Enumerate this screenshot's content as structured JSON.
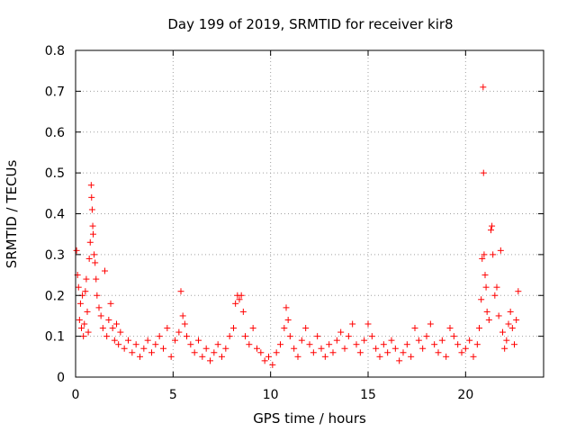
{
  "chart_data": {
    "type": "scatter",
    "title": "Day 199 of 2019, SRMTID for receiver kir8",
    "xlabel": "GPS time / hours",
    "ylabel": "SRMTID / TECUs",
    "xlim": [
      0,
      24
    ],
    "ylim": [
      0,
      0.8
    ],
    "xticks": [
      0,
      5,
      10,
      15,
      20
    ],
    "xtick_labels": [
      "0",
      "5",
      "10",
      "15",
      "20"
    ],
    "yticks": [
      0,
      0.1,
      0.2,
      0.3,
      0.4,
      0.5,
      0.6,
      0.7,
      0.8
    ],
    "ytick_labels": [
      "0",
      "0.1",
      "0.2",
      "0.3",
      "0.4",
      "0.5",
      "0.6",
      "0.7",
      "0.8"
    ],
    "grid": true,
    "marker_color": "#ff0000",
    "marker": "+",
    "series": [
      {
        "name": "SRMTID",
        "points": [
          [
            0.05,
            0.31
          ],
          [
            0.1,
            0.25
          ],
          [
            0.15,
            0.22
          ],
          [
            0.2,
            0.14
          ],
          [
            0.25,
            0.18
          ],
          [
            0.3,
            0.12
          ],
          [
            0.35,
            0.2
          ],
          [
            0.4,
            0.1
          ],
          [
            0.45,
            0.13
          ],
          [
            0.5,
            0.21
          ],
          [
            0.55,
            0.24
          ],
          [
            0.6,
            0.16
          ],
          [
            0.65,
            0.11
          ],
          [
            0.7,
            0.29
          ],
          [
            0.75,
            0.33
          ],
          [
            0.8,
            0.47
          ],
          [
            0.82,
            0.44
          ],
          [
            0.85,
            0.41
          ],
          [
            0.88,
            0.37
          ],
          [
            0.9,
            0.35
          ],
          [
            0.95,
            0.3
          ],
          [
            1.0,
            0.28
          ],
          [
            1.05,
            0.24
          ],
          [
            1.1,
            0.2
          ],
          [
            1.2,
            0.17
          ],
          [
            1.3,
            0.15
          ],
          [
            1.4,
            0.12
          ],
          [
            1.5,
            0.26
          ],
          [
            1.6,
            0.1
          ],
          [
            1.7,
            0.14
          ],
          [
            1.8,
            0.18
          ],
          [
            1.9,
            0.12
          ],
          [
            2.0,
            0.09
          ],
          [
            2.1,
            0.13
          ],
          [
            2.2,
            0.08
          ],
          [
            2.3,
            0.11
          ],
          [
            2.5,
            0.07
          ],
          [
            2.7,
            0.09
          ],
          [
            2.9,
            0.06
          ],
          [
            3.1,
            0.08
          ],
          [
            3.3,
            0.05
          ],
          [
            3.5,
            0.07
          ],
          [
            3.7,
            0.09
          ],
          [
            3.9,
            0.06
          ],
          [
            4.1,
            0.08
          ],
          [
            4.3,
            0.1
          ],
          [
            4.5,
            0.07
          ],
          [
            4.7,
            0.12
          ],
          [
            4.9,
            0.05
          ],
          [
            5.1,
            0.09
          ],
          [
            5.3,
            0.11
          ],
          [
            5.4,
            0.21
          ],
          [
            5.5,
            0.15
          ],
          [
            5.6,
            0.13
          ],
          [
            5.7,
            0.1
          ],
          [
            5.9,
            0.08
          ],
          [
            6.1,
            0.06
          ],
          [
            6.3,
            0.09
          ],
          [
            6.5,
            0.05
          ],
          [
            6.7,
            0.07
          ],
          [
            6.9,
            0.04
          ],
          [
            7.1,
            0.06
          ],
          [
            7.3,
            0.08
          ],
          [
            7.5,
            0.05
          ],
          [
            7.7,
            0.07
          ],
          [
            7.9,
            0.1
          ],
          [
            8.1,
            0.12
          ],
          [
            8.2,
            0.18
          ],
          [
            8.3,
            0.2
          ],
          [
            8.4,
            0.19
          ],
          [
            8.5,
            0.2
          ],
          [
            8.6,
            0.16
          ],
          [
            8.7,
            0.1
          ],
          [
            8.9,
            0.08
          ],
          [
            9.1,
            0.12
          ],
          [
            9.3,
            0.07
          ],
          [
            9.5,
            0.06
          ],
          [
            9.7,
            0.04
          ],
          [
            9.9,
            0.05
          ],
          [
            10.1,
            0.03
          ],
          [
            10.3,
            0.06
          ],
          [
            10.5,
            0.08
          ],
          [
            10.7,
            0.12
          ],
          [
            10.8,
            0.17
          ],
          [
            10.9,
            0.14
          ],
          [
            11.0,
            0.1
          ],
          [
            11.2,
            0.07
          ],
          [
            11.4,
            0.05
          ],
          [
            11.6,
            0.09
          ],
          [
            11.8,
            0.12
          ],
          [
            12.0,
            0.08
          ],
          [
            12.2,
            0.06
          ],
          [
            12.4,
            0.1
          ],
          [
            12.6,
            0.07
          ],
          [
            12.8,
            0.05
          ],
          [
            13.0,
            0.08
          ],
          [
            13.2,
            0.06
          ],
          [
            13.4,
            0.09
          ],
          [
            13.6,
            0.11
          ],
          [
            13.8,
            0.07
          ],
          [
            14.0,
            0.1
          ],
          [
            14.2,
            0.13
          ],
          [
            14.4,
            0.08
          ],
          [
            14.6,
            0.06
          ],
          [
            14.8,
            0.09
          ],
          [
            15.0,
            0.13
          ],
          [
            15.2,
            0.1
          ],
          [
            15.4,
            0.07
          ],
          [
            15.6,
            0.05
          ],
          [
            15.8,
            0.08
          ],
          [
            16.0,
            0.06
          ],
          [
            16.2,
            0.09
          ],
          [
            16.4,
            0.07
          ],
          [
            16.6,
            0.04
          ],
          [
            16.8,
            0.06
          ],
          [
            17.0,
            0.08
          ],
          [
            17.2,
            0.05
          ],
          [
            17.4,
            0.12
          ],
          [
            17.6,
            0.09
          ],
          [
            17.8,
            0.07
          ],
          [
            18.0,
            0.1
          ],
          [
            18.2,
            0.13
          ],
          [
            18.4,
            0.08
          ],
          [
            18.6,
            0.06
          ],
          [
            18.8,
            0.09
          ],
          [
            19.0,
            0.05
          ],
          [
            19.2,
            0.12
          ],
          [
            19.4,
            0.1
          ],
          [
            19.6,
            0.08
          ],
          [
            19.8,
            0.06
          ],
          [
            20.0,
            0.07
          ],
          [
            20.2,
            0.09
          ],
          [
            20.4,
            0.05
          ],
          [
            20.6,
            0.08
          ],
          [
            20.7,
            0.12
          ],
          [
            20.8,
            0.19
          ],
          [
            20.85,
            0.29
          ],
          [
            20.9,
            0.71
          ],
          [
            20.92,
            0.5
          ],
          [
            20.95,
            0.3
          ],
          [
            21.0,
            0.25
          ],
          [
            21.05,
            0.22
          ],
          [
            21.1,
            0.16
          ],
          [
            21.2,
            0.14
          ],
          [
            21.3,
            0.36
          ],
          [
            21.35,
            0.37
          ],
          [
            21.4,
            0.3
          ],
          [
            21.5,
            0.2
          ],
          [
            21.6,
            0.22
          ],
          [
            21.7,
            0.15
          ],
          [
            21.8,
            0.31
          ],
          [
            21.9,
            0.11
          ],
          [
            22.0,
            0.07
          ],
          [
            22.1,
            0.09
          ],
          [
            22.2,
            0.13
          ],
          [
            22.3,
            0.16
          ],
          [
            22.4,
            0.12
          ],
          [
            22.5,
            0.08
          ],
          [
            22.6,
            0.14
          ],
          [
            22.7,
            0.21
          ]
        ]
      }
    ]
  }
}
